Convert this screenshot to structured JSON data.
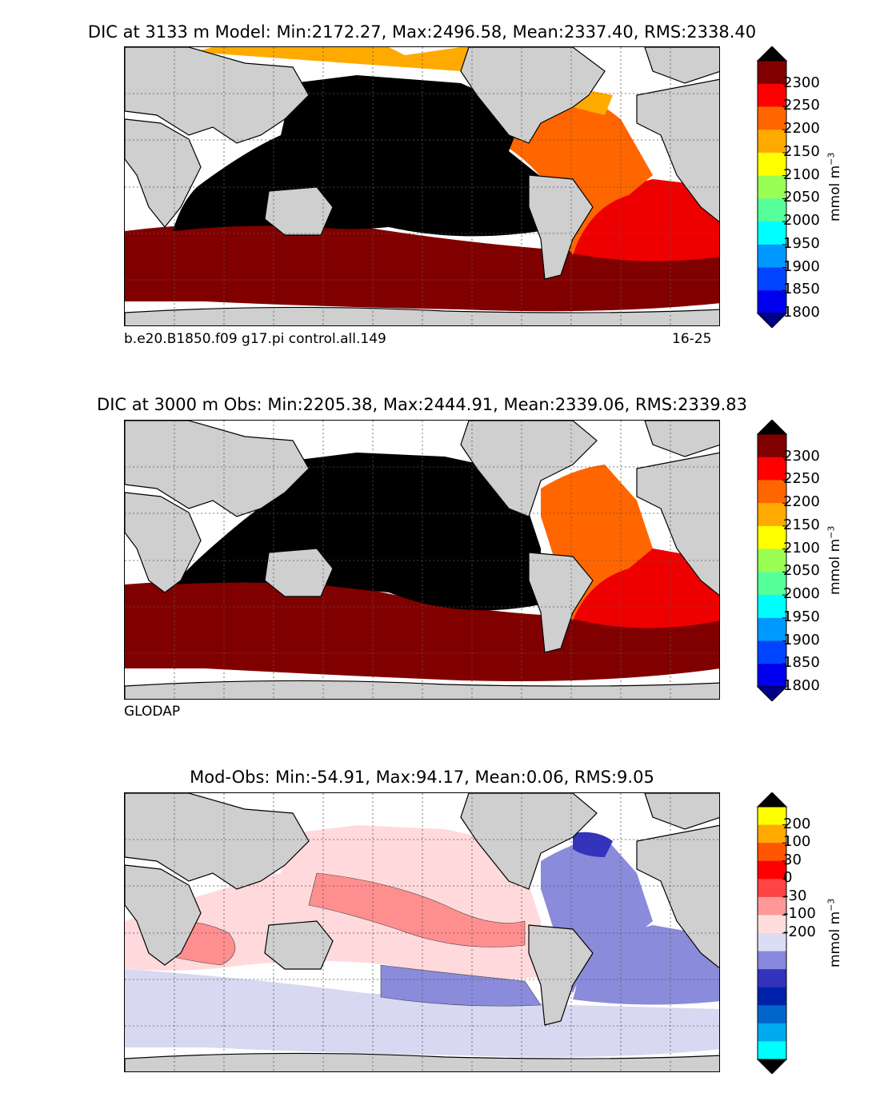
{
  "panels": [
    {
      "id": "model",
      "title": "DIC at 3133 m Model: Min:2172.27, Max:2496.58, Mean:2337.40, RMS:2338.40",
      "footnote_left": "b.e20.B1850.f09 g17.pi control.all.149",
      "footnote_right": "16-25",
      "colorbar": {
        "unit_text": "mmol m",
        "unit_exp": "−3",
        "ticks": [
          "2300",
          "2250",
          "2200",
          "2150",
          "2100",
          "2050",
          "2000",
          "1950",
          "1900",
          "1850",
          "1800"
        ],
        "colors": [
          "#000000",
          "#800000",
          "#ff0000",
          "#ff6600",
          "#ffaa00",
          "#ffff00",
          "#99ff55",
          "#55ff99",
          "#00ffff",
          "#0099ff",
          "#0044ff",
          "#0000ee",
          "#000088"
        ]
      },
      "regions": {
        "pacific_indian": "#000000",
        "southern_ocean": "#800000",
        "south_atlantic_sector": "#ee0000",
        "north_atlantic": "#ff6600",
        "arctic_north": "#ffaa00"
      }
    },
    {
      "id": "obs",
      "title": "DIC at 3000 m Obs: Min:2205.38, Max:2444.91, Mean:2339.06, RMS:2339.83",
      "footnote_left": "GLODAP",
      "footnote_right": "",
      "colorbar": {
        "unit_text": "mmol m",
        "unit_exp": "−3",
        "ticks": [
          "2300",
          "2250",
          "2200",
          "2150",
          "2100",
          "2050",
          "2000",
          "1950",
          "1900",
          "1850",
          "1800"
        ],
        "colors": [
          "#000000",
          "#800000",
          "#ff0000",
          "#ff6600",
          "#ffaa00",
          "#ffff00",
          "#99ff55",
          "#55ff99",
          "#00ffff",
          "#0099ff",
          "#0044ff",
          "#0000ee",
          "#000088"
        ]
      },
      "regions": {
        "pacific_indian": "#000000",
        "southern_ocean": "#800000",
        "south_atlantic_sector": "#ee0000",
        "north_atlantic": "#ff6600",
        "arctic_north": "#ffffff"
      }
    },
    {
      "id": "diff",
      "title": "Mod-Obs: Min:-54.91, Max:94.17, Mean:0.06, RMS:9.05",
      "footnote_left": "",
      "footnote_right": "",
      "colorbar": {
        "unit_text": "mmol m",
        "unit_exp": "−3",
        "ticks": [
          "200",
          "100",
          "30",
          "0",
          "-30",
          "-100",
          "-200"
        ],
        "colors": [
          "#000000",
          "#ffff00",
          "#ffaa00",
          "#ff5500",
          "#ff0000",
          "#ff4444",
          "#ff9999",
          "#ffdddd",
          "#dddcf5",
          "#8888dd",
          "#3333bb",
          "#0022aa",
          "#0066cc",
          "#00aaee",
          "#00ffff",
          "#000000"
        ]
      },
      "regions": {
        "pacific_indian": "#ffd9dc",
        "southern_ocean": "#d8d8f2",
        "south_atlantic_sector": "#8b8bdb",
        "north_atlantic": "#8b8bdb",
        "arctic_north": "#ffffff"
      }
    }
  ]
}
